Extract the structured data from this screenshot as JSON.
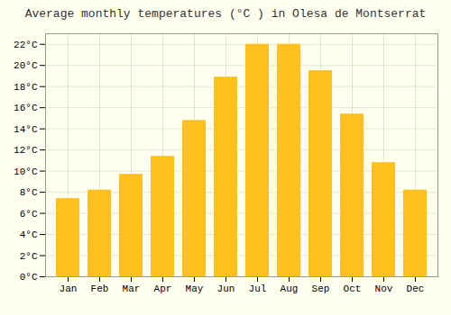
{
  "chart_data": {
    "type": "bar",
    "title": "Average monthly temperatures (°C ) in Olesa de Montserrat",
    "categories": [
      "Jan",
      "Feb",
      "Mar",
      "Apr",
      "May",
      "Jun",
      "Jul",
      "Aug",
      "Sep",
      "Oct",
      "Nov",
      "Dec"
    ],
    "values": [
      7.4,
      8.2,
      9.7,
      11.4,
      14.8,
      18.9,
      22.0,
      22.0,
      19.5,
      15.4,
      10.8,
      8.2
    ],
    "color": "#FFC020",
    "ylim": [
      0,
      23
    ],
    "yticks": [
      {
        "value": 0,
        "label": "0°C"
      },
      {
        "value": 2,
        "label": "2°C"
      },
      {
        "value": 4,
        "label": "4°C"
      },
      {
        "value": 6,
        "label": "6°C"
      },
      {
        "value": 8,
        "label": "8°C"
      },
      {
        "value": 10,
        "label": "10°C"
      },
      {
        "value": 12,
        "label": "12°C"
      },
      {
        "value": 14,
        "label": "14°C"
      },
      {
        "value": 16,
        "label": "16°C"
      },
      {
        "value": 18,
        "label": "18°C"
      },
      {
        "value": 20,
        "label": "20°C"
      },
      {
        "value": 22,
        "label": "22°C"
      }
    ],
    "grid": true
  }
}
